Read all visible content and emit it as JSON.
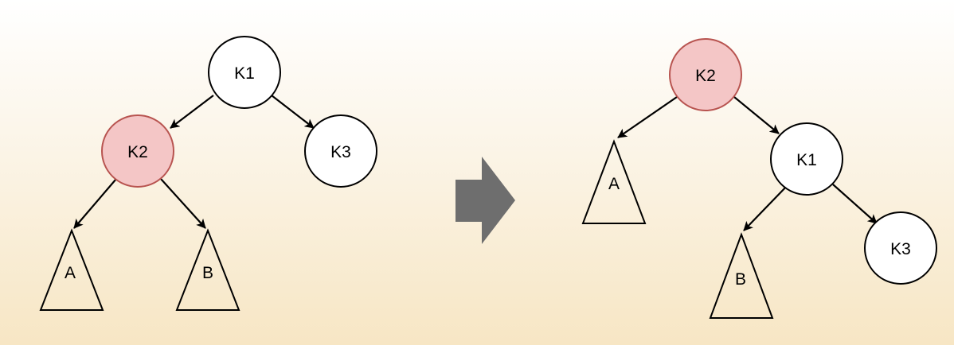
{
  "colors": {
    "node_fill": "#ffffff",
    "node_highlight_fill": "#f4c6c6",
    "node_highlight_stroke": "#b85450",
    "stroke": "#000000",
    "arrow": "#707070"
  },
  "before_tree": {
    "nodes": [
      {
        "id": "k1",
        "label": "K1",
        "highlighted": false
      },
      {
        "id": "k2",
        "label": "K2",
        "highlighted": true
      },
      {
        "id": "k3",
        "label": "K3",
        "highlighted": false
      }
    ],
    "subtrees": [
      {
        "id": "a",
        "label": "A"
      },
      {
        "id": "b",
        "label": "B"
      }
    ],
    "edges": [
      {
        "from": "K1",
        "to": "K2"
      },
      {
        "from": "K1",
        "to": "K3"
      },
      {
        "from": "K2",
        "to": "A"
      },
      {
        "from": "K2",
        "to": "B"
      }
    ]
  },
  "after_tree": {
    "nodes": [
      {
        "id": "k2",
        "label": "K2",
        "highlighted": true
      },
      {
        "id": "k1",
        "label": "K1",
        "highlighted": false
      },
      {
        "id": "k3",
        "label": "K3",
        "highlighted": false
      }
    ],
    "subtrees": [
      {
        "id": "a",
        "label": "A"
      },
      {
        "id": "b",
        "label": "B"
      }
    ],
    "edges": [
      {
        "from": "K2",
        "to": "A"
      },
      {
        "from": "K2",
        "to": "K1"
      },
      {
        "from": "K1",
        "to": "B"
      },
      {
        "from": "K1",
        "to": "K3"
      }
    ]
  },
  "transition_arrow": {
    "icon": "right-arrow-icon"
  }
}
